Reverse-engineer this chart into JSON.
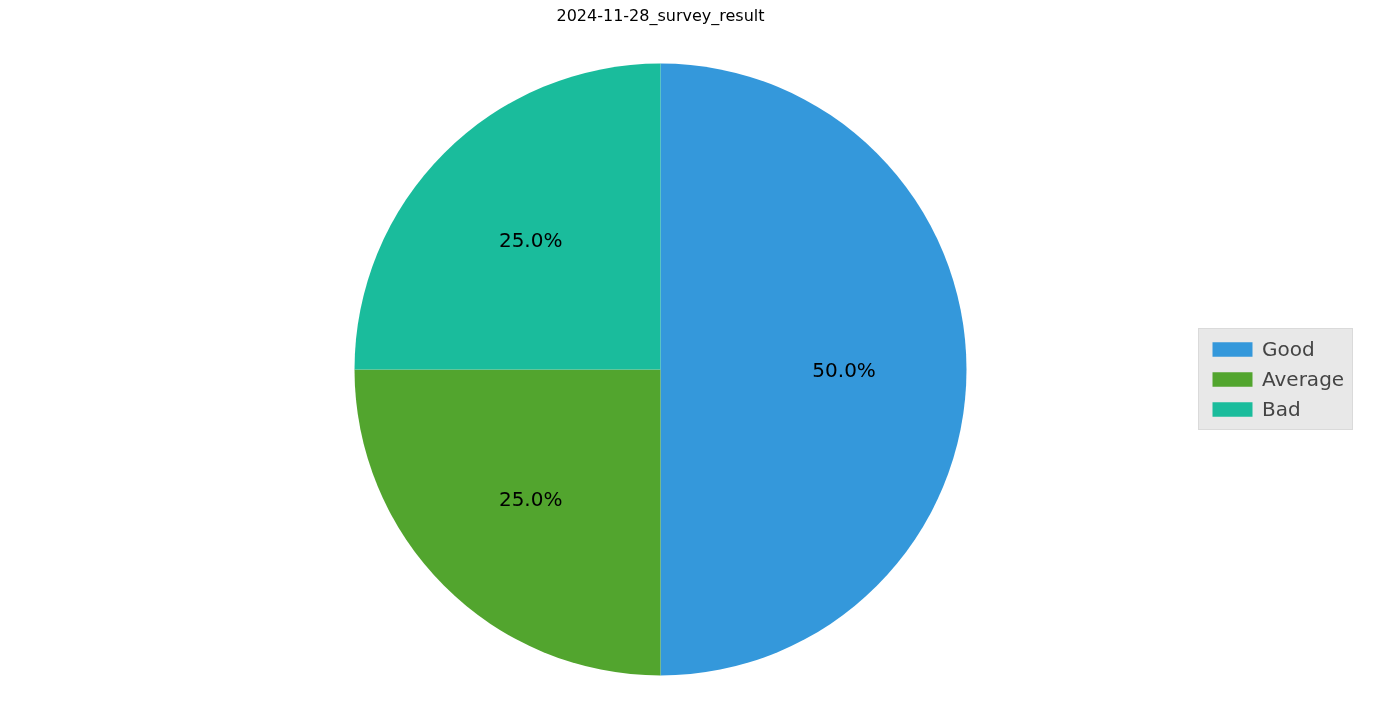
{
  "chart_data": {
    "type": "pie",
    "title": "2024-11-28_survey_result",
    "categories": [
      "Good",
      "Average",
      "Bad"
    ],
    "values": [
      50,
      25,
      25
    ],
    "colors": [
      "#3498db",
      "#52a52e",
      "#1abc9c"
    ],
    "value_labels": [
      "50.0%",
      "25.0%",
      "25.0%"
    ],
    "legend": "right"
  }
}
